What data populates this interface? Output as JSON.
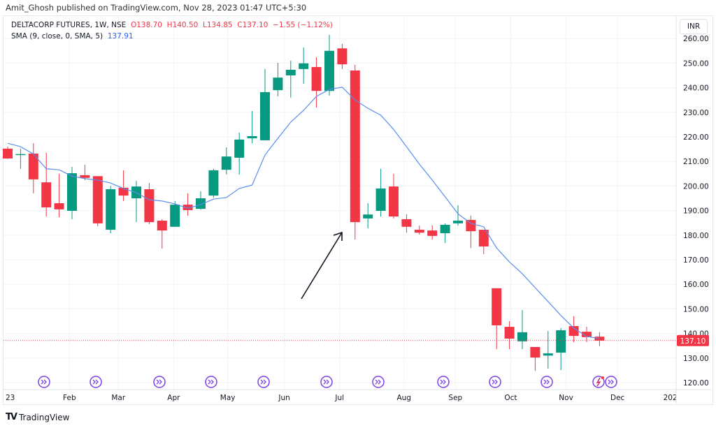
{
  "header": {
    "publisher": "Amit_Ghosh published on TradingView.com, Nov 28, 2023 01:47 UTC+5:30",
    "symbol": "DELTACORP FUTURES, 1W, NSE",
    "open": "O138.70",
    "high": "H140.50",
    "low": "L134.85",
    "close": "C137.10",
    "change": "−1.55 (−1.12%)",
    "sma_label": "SMA (9, close, 0, SMA, 5)",
    "sma_value": "137.91"
  },
  "currency": "INR",
  "footer": {
    "brand": "TradingView"
  },
  "chart_data": {
    "type": "candlestick",
    "ylim": [
      117,
      262
    ],
    "y_ticks": [
      "120.00",
      "130.00",
      "140.00",
      "150.00",
      "160.00",
      "170.00",
      "180.00",
      "190.00",
      "200.00",
      "210.00",
      "220.00",
      "230.00",
      "240.00",
      "250.00",
      "260.00"
    ],
    "x_ticks": [
      "23",
      "Feb",
      "Mar",
      "Apr",
      "May",
      "Jun",
      "Jul",
      "Aug",
      "Sep",
      "Oct",
      "Nov",
      "Dec",
      "202"
    ],
    "last_price": "137.10",
    "colors": {
      "up": "#089981",
      "down": "#f23645",
      "sma": "#5b8def",
      "event": "#7b3fe4",
      "arrow": "#131722"
    },
    "grid": true,
    "ohlc": [
      [
        215.2,
        216,
        211,
        211.2
      ],
      [
        212.7,
        215.2,
        207,
        213
      ],
      [
        213.2,
        217.4,
        197,
        202.7
      ],
      [
        201.5,
        213.5,
        187.6,
        191.3
      ],
      [
        193,
        205,
        187.3,
        190.5
      ],
      [
        189.9,
        207.8,
        186.5,
        205.2
      ],
      [
        204.4,
        208.6,
        202.4,
        203.3
      ],
      [
        204,
        204,
        183.6,
        184.8
      ],
      [
        182.2,
        200,
        180.8,
        198.7
      ],
      [
        199.3,
        206.4,
        193.9,
        196.1
      ],
      [
        195,
        202.1,
        185.3,
        199.8
      ],
      [
        198.7,
        201.2,
        184.5,
        185.3
      ],
      [
        185.9,
        186.5,
        174.5,
        181.9
      ],
      [
        183.4,
        193.9,
        183.4,
        192.4
      ],
      [
        192.4,
        197,
        187.9,
        190.2
      ],
      [
        190.7,
        197.8,
        190.4,
        195
      ],
      [
        196.1,
        207,
        195.3,
        206.4
      ],
      [
        206.6,
        215.7,
        204.7,
        212
      ],
      [
        211.5,
        221.7,
        204.7,
        218.9
      ],
      [
        219.4,
        230.5,
        217.4,
        220.3
      ],
      [
        218.6,
        247.6,
        218.6,
        238.2
      ],
      [
        239,
        250.1,
        236.5,
        244.1
      ],
      [
        245,
        251,
        236,
        247.3
      ],
      [
        247.6,
        256.4,
        241.6,
        249.9
      ],
      [
        248.4,
        252.4,
        231.9,
        238.7
      ],
      [
        238.7,
        261.5,
        236.8,
        255
      ],
      [
        256,
        257.8,
        247.6,
        249.5
      ],
      [
        247,
        249.3,
        178.2,
        185.3
      ],
      [
        186.8,
        193,
        182.8,
        188.4
      ],
      [
        189.9,
        207,
        187.6,
        199
      ],
      [
        199.8,
        205,
        186.8,
        187.6
      ],
      [
        186.5,
        188.5,
        181,
        183.4
      ],
      [
        182.2,
        183.9,
        180.2,
        181
      ],
      [
        181.9,
        184,
        178.2,
        179.7
      ],
      [
        180.8,
        184.8,
        176.8,
        184.2
      ],
      [
        184.8,
        192.2,
        183.9,
        185.9
      ],
      [
        186.2,
        187.9,
        174.8,
        181.6
      ],
      [
        182.2,
        182.2,
        172.3,
        175.4
      ],
      [
        158.4,
        158.4,
        133.6,
        143.3
      ],
      [
        142.7,
        145,
        133.6,
        137.9
      ],
      [
        136.8,
        149.5,
        133.6,
        140.5
      ],
      [
        134.5,
        134.5,
        124.8,
        130.2
      ],
      [
        131,
        141,
        125.7,
        131.9
      ],
      [
        132.2,
        142.2,
        125.1,
        141.3
      ],
      [
        143,
        147,
        136.5,
        139
      ],
      [
        140.7,
        142.7,
        136.5,
        138.5
      ],
      [
        138.7,
        140.5,
        134.85,
        137.1
      ]
    ],
    "sma": [
      217.4,
      216,
      213,
      207,
      206.6,
      204,
      203,
      202.4,
      201.2,
      199,
      197.3,
      194.4,
      193.9,
      192.7,
      191,
      192.4,
      194.7,
      195.3,
      199,
      200.4,
      212.6,
      219.4,
      226,
      230.8,
      236.5,
      239.3,
      240.2,
      235,
      231.6,
      228.8,
      223,
      216,
      208.9,
      202.4,
      195.6,
      188.7,
      184.8,
      183.4,
      174.8,
      169.1,
      164.3,
      158.6,
      153,
      147.3,
      142.2,
      138.8,
      137.91
    ],
    "events": [
      "dividend",
      "dividend",
      "dividend",
      "dividend",
      "dividend",
      "dividend",
      "dividend",
      "dividend",
      "dividend",
      "dividend",
      "split",
      "dividend"
    ]
  }
}
